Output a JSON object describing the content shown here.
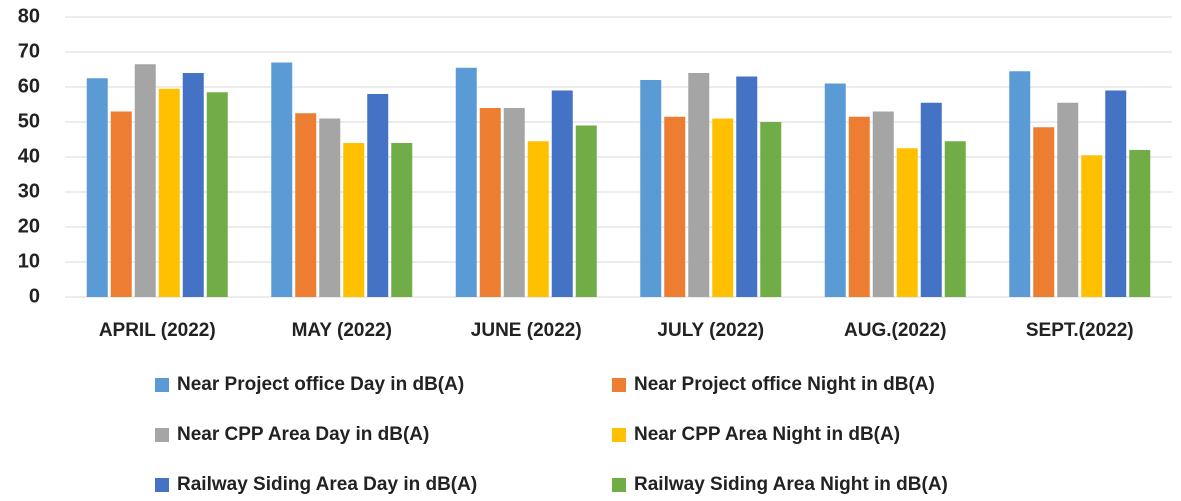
{
  "chart_data": {
    "type": "bar",
    "categories": [
      "APRIL (2022)",
      "MAY (2022)",
      "JUNE (2022)",
      "JULY (2022)",
      "AUG.(2022)",
      "SEPT.(2022)"
    ],
    "series": [
      {
        "name": "Near Project office Day  in dB(A)",
        "color": "#5b9bd5",
        "values": [
          62.5,
          67,
          65.5,
          62,
          61,
          64.5
        ]
      },
      {
        "name": "Near Project office Night in dB(A)",
        "color": "#ed7d31",
        "values": [
          53,
          52.5,
          54,
          51.5,
          51.5,
          48.5
        ]
      },
      {
        "name": "Near CPP Area Day  in dB(A)",
        "color": "#a5a5a5",
        "values": [
          66.5,
          51,
          54,
          64,
          53,
          55.5
        ]
      },
      {
        "name": "Near CPP Area Night in dB(A)",
        "color": "#ffc000",
        "values": [
          59.5,
          44,
          44.5,
          51,
          42.5,
          40.5
        ]
      },
      {
        "name": "Railway Siding Area Day  in dB(A)",
        "color": "#4472c4",
        "values": [
          64,
          58,
          59,
          63,
          55.5,
          59
        ]
      },
      {
        "name": "Railway Siding Area Night in dB(A)",
        "color": "#70ad47",
        "values": [
          58.5,
          44,
          49,
          50,
          44.5,
          42
        ]
      }
    ],
    "ylim": [
      0,
      80
    ],
    "yticks": [
      0,
      10,
      20,
      30,
      40,
      50,
      60,
      70,
      80
    ],
    "grid": true,
    "legend": "bottom"
  }
}
